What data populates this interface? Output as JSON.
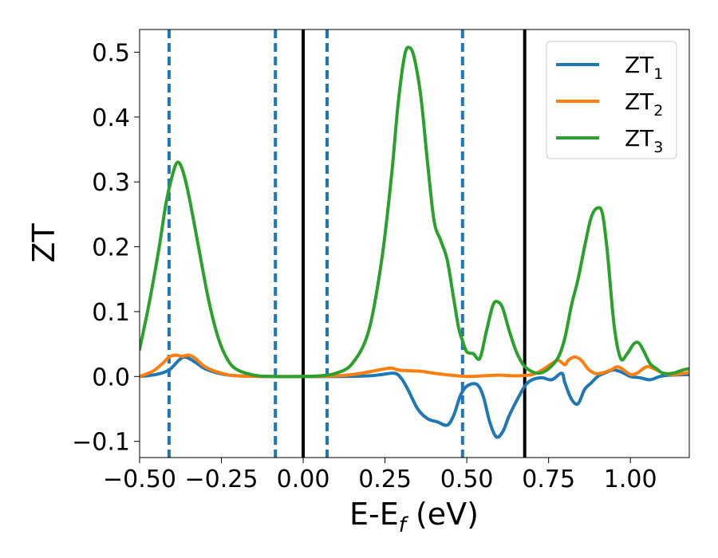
{
  "chart_data": {
    "type": "line",
    "xlabel": {
      "main": "E-E",
      "sub": "f",
      "unit": " (eV)"
    },
    "ylabel": "ZT",
    "xlim": [
      -0.5,
      1.18
    ],
    "ylim": [
      -0.125,
      0.535
    ],
    "xticks": [
      {
        "value": -0.5,
        "label": "−0.50"
      },
      {
        "value": -0.25,
        "label": "−0.25"
      },
      {
        "value": 0.0,
        "label": "0.00"
      },
      {
        "value": 0.25,
        "label": "0.25"
      },
      {
        "value": 0.5,
        "label": "0.50"
      },
      {
        "value": 0.75,
        "label": "0.75"
      },
      {
        "value": 1.0,
        "label": "1.00"
      }
    ],
    "yticks": [
      {
        "value": -0.1,
        "label": "−0.1"
      },
      {
        "value": 0.0,
        "label": "0.0"
      },
      {
        "value": 0.1,
        "label": "0.1"
      },
      {
        "value": 0.2,
        "label": "0.2"
      },
      {
        "value": 0.3,
        "label": "0.3"
      },
      {
        "value": 0.4,
        "label": "0.4"
      },
      {
        "value": 0.5,
        "label": "0.5"
      }
    ],
    "grid": false,
    "legend_position": "top-right",
    "vlines": [
      {
        "x": -0.41,
        "style": "dashed",
        "color": "#1f77b4"
      },
      {
        "x": -0.085,
        "style": "dashed",
        "color": "#1f77b4"
      },
      {
        "x": 0.0,
        "style": "solid",
        "color": "#000000"
      },
      {
        "x": 0.073,
        "style": "dashed",
        "color": "#1f77b4"
      },
      {
        "x": 0.487,
        "style": "dashed",
        "color": "#1f77b4"
      },
      {
        "x": 0.677,
        "style": "solid",
        "color": "#000000"
      }
    ],
    "series": [
      {
        "name": "ZT",
        "sub": "1",
        "color": "#1f77b4",
        "points": [
          [
            -0.5,
            0
          ],
          [
            -0.45,
            0.003
          ],
          [
            -0.41,
            0.01
          ],
          [
            -0.38,
            0.025
          ],
          [
            -0.36,
            0.03
          ],
          [
            -0.33,
            0.022
          ],
          [
            -0.3,
            0.012
          ],
          [
            -0.25,
            0.004
          ],
          [
            -0.2,
            0.001
          ],
          [
            -0.1,
            0
          ],
          [
            0,
            0
          ],
          [
            0.1,
            0
          ],
          [
            0.2,
            0.001
          ],
          [
            0.24,
            0.003
          ],
          [
            0.28,
            0.005
          ],
          [
            0.3,
            -0.003
          ],
          [
            0.32,
            -0.02
          ],
          [
            0.35,
            -0.05
          ],
          [
            0.38,
            -0.065
          ],
          [
            0.41,
            -0.07
          ],
          [
            0.44,
            -0.075
          ],
          [
            0.46,
            -0.06
          ],
          [
            0.48,
            -0.03
          ],
          [
            0.5,
            -0.015
          ],
          [
            0.53,
            -0.012
          ],
          [
            0.55,
            -0.03
          ],
          [
            0.57,
            -0.07
          ],
          [
            0.59,
            -0.093
          ],
          [
            0.61,
            -0.085
          ],
          [
            0.63,
            -0.06
          ],
          [
            0.66,
            -0.03
          ],
          [
            0.68,
            -0.013
          ],
          [
            0.7,
            -0.005
          ],
          [
            0.73,
            -0.002
          ],
          [
            0.76,
            -0.005
          ],
          [
            0.79,
            0.005
          ],
          [
            0.8,
            -0.01
          ],
          [
            0.82,
            -0.035
          ],
          [
            0.84,
            -0.042
          ],
          [
            0.86,
            -0.02
          ],
          [
            0.88,
            -0.01
          ],
          [
            0.9,
            0
          ],
          [
            0.92,
            0.005
          ],
          [
            0.95,
            0.01
          ],
          [
            0.98,
            0.005
          ],
          [
            1.0,
            0
          ],
          [
            1.03,
            -0.002
          ],
          [
            1.06,
            -0.005
          ],
          [
            1.09,
            0
          ],
          [
            1.12,
            0.002
          ],
          [
            1.18,
            0.003
          ]
        ]
      },
      {
        "name": "ZT",
        "sub": "2",
        "color": "#ff7f0e",
        "points": [
          [
            -0.5,
            0
          ],
          [
            -0.46,
            0.008
          ],
          [
            -0.43,
            0.02
          ],
          [
            -0.41,
            0.03
          ],
          [
            -0.39,
            0.033
          ],
          [
            -0.37,
            0.031
          ],
          [
            -0.35,
            0.033
          ],
          [
            -0.33,
            0.028
          ],
          [
            -0.3,
            0.015
          ],
          [
            -0.25,
            0.005
          ],
          [
            -0.2,
            0.001
          ],
          [
            -0.1,
            0
          ],
          [
            0,
            0
          ],
          [
            0.1,
            0.001
          ],
          [
            0.15,
            0.003
          ],
          [
            0.2,
            0.007
          ],
          [
            0.24,
            0.011
          ],
          [
            0.27,
            0.013
          ],
          [
            0.29,
            0.01
          ],
          [
            0.32,
            0.009
          ],
          [
            0.36,
            0.008
          ],
          [
            0.4,
            0.005
          ],
          [
            0.45,
            0.002
          ],
          [
            0.5,
            0
          ],
          [
            0.55,
            0.001
          ],
          [
            0.6,
            0.002
          ],
          [
            0.65,
            0.001
          ],
          [
            0.7,
            0.003
          ],
          [
            0.73,
            0.01
          ],
          [
            0.76,
            0.02
          ],
          [
            0.78,
            0.025
          ],
          [
            0.8,
            0.018
          ],
          [
            0.81,
            0.025
          ],
          [
            0.83,
            0.03
          ],
          [
            0.85,
            0.025
          ],
          [
            0.87,
            0.012
          ],
          [
            0.89,
            0.005
          ],
          [
            0.91,
            0.005
          ],
          [
            0.94,
            0.01
          ],
          [
            0.96,
            0.015
          ],
          [
            0.98,
            0.01
          ],
          [
            1.0,
            0.003
          ],
          [
            1.02,
            0.005
          ],
          [
            1.05,
            0.015
          ],
          [
            1.08,
            0.01
          ],
          [
            1.1,
            0.005
          ],
          [
            1.13,
            0.003
          ],
          [
            1.18,
            0.006
          ]
        ]
      },
      {
        "name": "ZT",
        "sub": "3",
        "color": "#2ca02c",
        "points": [
          [
            -0.5,
            0.042
          ],
          [
            -0.47,
            0.115
          ],
          [
            -0.44,
            0.2
          ],
          [
            -0.42,
            0.265
          ],
          [
            -0.4,
            0.31
          ],
          [
            -0.385,
            0.33
          ],
          [
            -0.37,
            0.32
          ],
          [
            -0.35,
            0.28
          ],
          [
            -0.32,
            0.2
          ],
          [
            -0.29,
            0.12
          ],
          [
            -0.26,
            0.06
          ],
          [
            -0.23,
            0.025
          ],
          [
            -0.2,
            0.01
          ],
          [
            -0.15,
            0.002
          ],
          [
            -0.1,
            0
          ],
          [
            0,
            0
          ],
          [
            0.05,
            0.001
          ],
          [
            0.1,
            0.005
          ],
          [
            0.15,
            0.02
          ],
          [
            0.2,
            0.07
          ],
          [
            0.24,
            0.18
          ],
          [
            0.27,
            0.31
          ],
          [
            0.29,
            0.42
          ],
          [
            0.31,
            0.495
          ],
          [
            0.325,
            0.507
          ],
          [
            0.34,
            0.49
          ],
          [
            0.36,
            0.43
          ],
          [
            0.38,
            0.33
          ],
          [
            0.4,
            0.24
          ],
          [
            0.42,
            0.21
          ],
          [
            0.44,
            0.18
          ],
          [
            0.46,
            0.12
          ],
          [
            0.475,
            0.075
          ],
          [
            0.487,
            0.055
          ],
          [
            0.5,
            0.038
          ],
          [
            0.52,
            0.035
          ],
          [
            0.54,
            0.028
          ],
          [
            0.56,
            0.07
          ],
          [
            0.58,
            0.11
          ],
          [
            0.595,
            0.115
          ],
          [
            0.61,
            0.105
          ],
          [
            0.63,
            0.07
          ],
          [
            0.65,
            0.04
          ],
          [
            0.67,
            0.02
          ],
          [
            0.69,
            0.01
          ],
          [
            0.72,
            0.005
          ],
          [
            0.75,
            0.012
          ],
          [
            0.78,
            0.03
          ],
          [
            0.8,
            0.06
          ],
          [
            0.82,
            0.11
          ],
          [
            0.84,
            0.15
          ],
          [
            0.86,
            0.2
          ],
          [
            0.88,
            0.245
          ],
          [
            0.9,
            0.26
          ],
          [
            0.915,
            0.25
          ],
          [
            0.93,
            0.19
          ],
          [
            0.95,
            0.08
          ],
          [
            0.97,
            0.028
          ],
          [
            0.99,
            0.035
          ],
          [
            1.01,
            0.05
          ],
          [
            1.025,
            0.052
          ],
          [
            1.04,
            0.04
          ],
          [
            1.06,
            0.02
          ],
          [
            1.08,
            0.012
          ],
          [
            1.1,
            0.005
          ],
          [
            1.13,
            0.005
          ],
          [
            1.16,
            0.01
          ],
          [
            1.18,
            0.012
          ]
        ]
      }
    ]
  }
}
